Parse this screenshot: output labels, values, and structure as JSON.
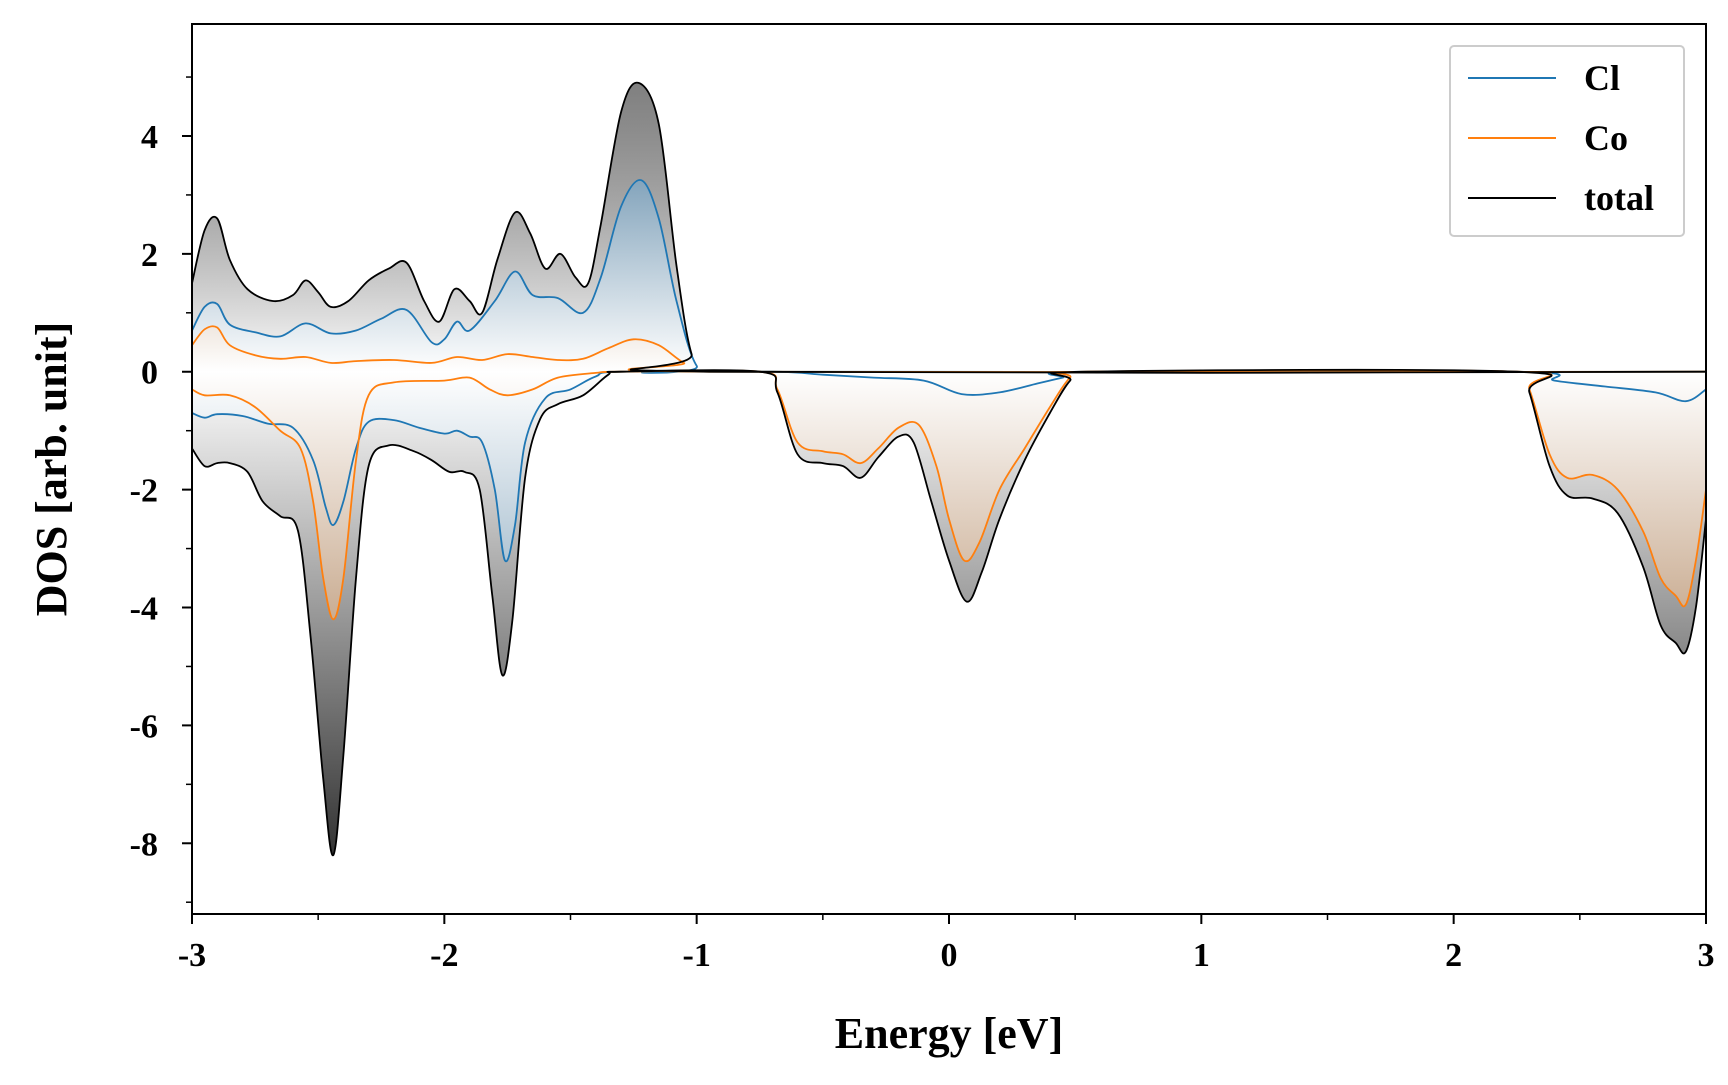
{
  "chart_data": {
    "type": "line",
    "title": "",
    "xlabel": "Energy [eV]",
    "ylabel": "DOS [arb. unit]",
    "xlim": [
      -3,
      3
    ],
    "ylim": [
      -9.2,
      5.9
    ],
    "xticks": [
      -3,
      -2,
      -1,
      0,
      1,
      2,
      3
    ],
    "xtick_labels": [
      "-3",
      "-2",
      "-1",
      "0",
      "1",
      "2",
      "3"
    ],
    "yticks": [
      -8,
      -6,
      -4,
      -2,
      0,
      2,
      4
    ],
    "ytick_labels": [
      "-8",
      "-6",
      "-4",
      "-2",
      "0",
      "2",
      "4"
    ],
    "legend_position": "top-right",
    "grid": false,
    "series": [
      {
        "name": "Cl",
        "color": "#1f77b4",
        "up": [
          [
            -3,
            0.7
          ],
          [
            -2.95,
            1.1
          ],
          [
            -2.9,
            1.15
          ],
          [
            -2.85,
            0.8
          ],
          [
            -2.75,
            0.67
          ],
          [
            -2.65,
            0.6
          ],
          [
            -2.55,
            0.82
          ],
          [
            -2.45,
            0.65
          ],
          [
            -2.35,
            0.7
          ],
          [
            -2.25,
            0.9
          ],
          [
            -2.15,
            1.05
          ],
          [
            -2.05,
            0.5
          ],
          [
            -2,
            0.55
          ],
          [
            -1.95,
            0.85
          ],
          [
            -1.9,
            0.7
          ],
          [
            -1.8,
            1.2
          ],
          [
            -1.72,
            1.7
          ],
          [
            -1.65,
            1.3
          ],
          [
            -1.55,
            1.25
          ],
          [
            -1.45,
            1.0
          ],
          [
            -1.38,
            1.6
          ],
          [
            -1.3,
            2.8
          ],
          [
            -1.22,
            3.25
          ],
          [
            -1.15,
            2.6
          ],
          [
            -1.08,
            1.2
          ],
          [
            -1.0,
            0.1
          ],
          [
            -0.9,
            0.0
          ],
          [
            3,
            0.0
          ]
        ],
        "down": [
          [
            -3,
            -0.7
          ],
          [
            -2.95,
            -0.78
          ],
          [
            -2.9,
            -0.72
          ],
          [
            -2.8,
            -0.75
          ],
          [
            -2.7,
            -0.88
          ],
          [
            -2.6,
            -0.95
          ],
          [
            -2.52,
            -1.5
          ],
          [
            -2.47,
            -2.3
          ],
          [
            -2.44,
            -2.6
          ],
          [
            -2.4,
            -2.2
          ],
          [
            -2.35,
            -1.3
          ],
          [
            -2.3,
            -0.85
          ],
          [
            -2.2,
            -0.82
          ],
          [
            -2.1,
            -0.95
          ],
          [
            -2.0,
            -1.05
          ],
          [
            -1.95,
            -1.0
          ],
          [
            -1.9,
            -1.1
          ],
          [
            -1.85,
            -1.2
          ],
          [
            -1.8,
            -2.0
          ],
          [
            -1.76,
            -3.2
          ],
          [
            -1.72,
            -2.6
          ],
          [
            -1.68,
            -1.2
          ],
          [
            -1.6,
            -0.45
          ],
          [
            -1.5,
            -0.3
          ],
          [
            -1.4,
            -0.08
          ],
          [
            -1.3,
            0.0
          ],
          [
            -0.7,
            0.0
          ],
          [
            -0.5,
            -0.05
          ],
          [
            -0.3,
            -0.1
          ],
          [
            -0.1,
            -0.15
          ],
          [
            0.05,
            -0.38
          ],
          [
            0.2,
            -0.35
          ],
          [
            0.35,
            -0.2
          ],
          [
            0.45,
            -0.1
          ],
          [
            0.55,
            0.0
          ],
          [
            2.25,
            0.0
          ],
          [
            2.4,
            -0.15
          ],
          [
            2.6,
            -0.25
          ],
          [
            2.8,
            -0.35
          ],
          [
            2.92,
            -0.5
          ],
          [
            3,
            -0.3
          ]
        ]
      },
      {
        "name": "Co",
        "color": "#ff7f0e",
        "up": [
          [
            -3,
            0.45
          ],
          [
            -2.95,
            0.72
          ],
          [
            -2.9,
            0.75
          ],
          [
            -2.85,
            0.45
          ],
          [
            -2.75,
            0.28
          ],
          [
            -2.65,
            0.22
          ],
          [
            -2.55,
            0.25
          ],
          [
            -2.45,
            0.15
          ],
          [
            -2.35,
            0.18
          ],
          [
            -2.2,
            0.2
          ],
          [
            -2.05,
            0.15
          ],
          [
            -1.95,
            0.25
          ],
          [
            -1.85,
            0.2
          ],
          [
            -1.75,
            0.3
          ],
          [
            -1.65,
            0.25
          ],
          [
            -1.55,
            0.2
          ],
          [
            -1.45,
            0.22
          ],
          [
            -1.35,
            0.4
          ],
          [
            -1.25,
            0.55
          ],
          [
            -1.15,
            0.45
          ],
          [
            -1.05,
            0.15
          ],
          [
            -0.95,
            0.0
          ],
          [
            3,
            0.0
          ]
        ],
        "down": [
          [
            -3,
            -0.3
          ],
          [
            -2.95,
            -0.4
          ],
          [
            -2.85,
            -0.4
          ],
          [
            -2.75,
            -0.6
          ],
          [
            -2.65,
            -1.0
          ],
          [
            -2.57,
            -1.3
          ],
          [
            -2.52,
            -2.2
          ],
          [
            -2.48,
            -3.5
          ],
          [
            -2.44,
            -4.2
          ],
          [
            -2.4,
            -3.5
          ],
          [
            -2.35,
            -1.5
          ],
          [
            -2.3,
            -0.4
          ],
          [
            -2.2,
            -0.18
          ],
          [
            -2.0,
            -0.15
          ],
          [
            -1.9,
            -0.1
          ],
          [
            -1.82,
            -0.3
          ],
          [
            -1.75,
            -0.4
          ],
          [
            -1.65,
            -0.3
          ],
          [
            -1.55,
            -0.1
          ],
          [
            -1.4,
            -0.02
          ],
          [
            -1.3,
            0.0
          ],
          [
            -0.75,
            0.0
          ],
          [
            -0.68,
            -0.3
          ],
          [
            -0.6,
            -1.2
          ],
          [
            -0.5,
            -1.35
          ],
          [
            -0.42,
            -1.4
          ],
          [
            -0.35,
            -1.55
          ],
          [
            -0.28,
            -1.3
          ],
          [
            -0.2,
            -0.95
          ],
          [
            -0.12,
            -0.9
          ],
          [
            -0.05,
            -1.6
          ],
          [
            0.0,
            -2.5
          ],
          [
            0.06,
            -3.2
          ],
          [
            0.12,
            -2.9
          ],
          [
            0.2,
            -2.0
          ],
          [
            0.3,
            -1.3
          ],
          [
            0.4,
            -0.6
          ],
          [
            0.48,
            -0.1
          ],
          [
            0.55,
            0.0
          ],
          [
            2.25,
            0.0
          ],
          [
            2.3,
            -0.3
          ],
          [
            2.38,
            -1.4
          ],
          [
            2.45,
            -1.8
          ],
          [
            2.55,
            -1.75
          ],
          [
            2.65,
            -2.0
          ],
          [
            2.75,
            -2.7
          ],
          [
            2.82,
            -3.5
          ],
          [
            2.88,
            -3.8
          ],
          [
            2.92,
            -3.95
          ],
          [
            2.96,
            -3.2
          ],
          [
            3,
            -2.0
          ]
        ]
      },
      {
        "name": "total",
        "color": "#000000",
        "up": [
          [
            -3,
            1.5
          ],
          [
            -2.95,
            2.4
          ],
          [
            -2.9,
            2.6
          ],
          [
            -2.85,
            1.9
          ],
          [
            -2.78,
            1.4
          ],
          [
            -2.68,
            1.2
          ],
          [
            -2.6,
            1.3
          ],
          [
            -2.55,
            1.55
          ],
          [
            -2.5,
            1.35
          ],
          [
            -2.45,
            1.1
          ],
          [
            -2.38,
            1.2
          ],
          [
            -2.3,
            1.55
          ],
          [
            -2.22,
            1.75
          ],
          [
            -2.15,
            1.85
          ],
          [
            -2.08,
            1.2
          ],
          [
            -2.02,
            0.85
          ],
          [
            -1.96,
            1.4
          ],
          [
            -1.9,
            1.2
          ],
          [
            -1.85,
            1.0
          ],
          [
            -1.79,
            1.9
          ],
          [
            -1.72,
            2.7
          ],
          [
            -1.66,
            2.35
          ],
          [
            -1.6,
            1.75
          ],
          [
            -1.54,
            2.0
          ],
          [
            -1.48,
            1.6
          ],
          [
            -1.43,
            1.5
          ],
          [
            -1.38,
            2.5
          ],
          [
            -1.3,
            4.4
          ],
          [
            -1.23,
            4.9
          ],
          [
            -1.15,
            4.2
          ],
          [
            -1.08,
            1.8
          ],
          [
            -1.02,
            0.3
          ],
          [
            -0.95,
            0.0
          ],
          [
            3,
            0.0
          ]
        ],
        "down": [
          [
            -3,
            -1.3
          ],
          [
            -2.95,
            -1.6
          ],
          [
            -2.9,
            -1.55
          ],
          [
            -2.85,
            -1.55
          ],
          [
            -2.78,
            -1.7
          ],
          [
            -2.72,
            -2.2
          ],
          [
            -2.65,
            -2.45
          ],
          [
            -2.58,
            -2.7
          ],
          [
            -2.53,
            -4.5
          ],
          [
            -2.48,
            -6.9
          ],
          [
            -2.44,
            -8.2
          ],
          [
            -2.4,
            -6.5
          ],
          [
            -2.35,
            -3.5
          ],
          [
            -2.3,
            -1.6
          ],
          [
            -2.22,
            -1.25
          ],
          [
            -2.12,
            -1.35
          ],
          [
            -2.05,
            -1.5
          ],
          [
            -1.98,
            -1.7
          ],
          [
            -1.92,
            -1.7
          ],
          [
            -1.86,
            -2.0
          ],
          [
            -1.81,
            -3.8
          ],
          [
            -1.77,
            -5.15
          ],
          [
            -1.73,
            -4.2
          ],
          [
            -1.68,
            -1.8
          ],
          [
            -1.62,
            -0.8
          ],
          [
            -1.55,
            -0.55
          ],
          [
            -1.45,
            -0.4
          ],
          [
            -1.35,
            -0.05
          ],
          [
            -1.3,
            0.0
          ],
          [
            -0.75,
            0.0
          ],
          [
            -0.68,
            -0.35
          ],
          [
            -0.6,
            -1.4
          ],
          [
            -0.5,
            -1.55
          ],
          [
            -0.42,
            -1.6
          ],
          [
            -0.35,
            -1.8
          ],
          [
            -0.28,
            -1.45
          ],
          [
            -0.2,
            -1.1
          ],
          [
            -0.14,
            -1.2
          ],
          [
            -0.07,
            -2.2
          ],
          [
            0.0,
            -3.2
          ],
          [
            0.07,
            -3.9
          ],
          [
            0.13,
            -3.4
          ],
          [
            0.2,
            -2.5
          ],
          [
            0.3,
            -1.5
          ],
          [
            0.4,
            -0.7
          ],
          [
            0.48,
            -0.15
          ],
          [
            0.55,
            0.0
          ],
          [
            2.25,
            0.0
          ],
          [
            2.3,
            -0.35
          ],
          [
            2.38,
            -1.6
          ],
          [
            2.45,
            -2.1
          ],
          [
            2.55,
            -2.15
          ],
          [
            2.65,
            -2.4
          ],
          [
            2.75,
            -3.3
          ],
          [
            2.82,
            -4.3
          ],
          [
            2.88,
            -4.6
          ],
          [
            2.92,
            -4.75
          ],
          [
            2.96,
            -4.0
          ],
          [
            3,
            -2.5
          ]
        ]
      }
    ]
  }
}
